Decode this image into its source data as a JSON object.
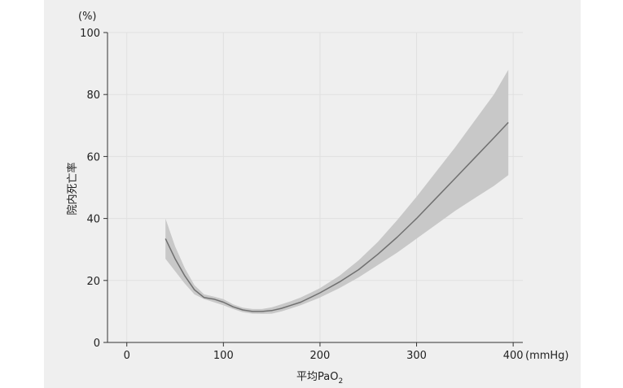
{
  "chart_data": {
    "type": "line",
    "title": "",
    "xlabel": "平均PaO",
    "xlabel_subscript": "2",
    "ylabel": "院内死亡率",
    "x_unit": "(mmHg)",
    "y_unit": "(%)",
    "xlim": [
      -20,
      410
    ],
    "ylim": [
      0,
      100
    ],
    "x_ticks": [
      0,
      100,
      200,
      300,
      400
    ],
    "y_ticks": [
      0,
      20,
      40,
      60,
      80,
      100
    ],
    "grid": true,
    "series": [
      {
        "x": [
          40,
          50,
          60,
          70,
          80,
          90,
          100,
          110,
          120,
          130,
          140,
          150,
          160,
          170,
          180,
          200,
          220,
          240,
          260,
          280,
          300,
          320,
          340,
          360,
          380,
          395
        ],
        "y": [
          33.5,
          27,
          21.5,
          17,
          14.5,
          14,
          13,
          11.5,
          10.5,
          10,
          10,
          10.3,
          11,
          12,
          13,
          16,
          19.5,
          23.5,
          28.5,
          34,
          40,
          46.5,
          53,
          59.5,
          66,
          71
        ],
        "lower": [
          27,
          23,
          19,
          15.5,
          14,
          13,
          12,
          10.8,
          9.8,
          9.3,
          9.2,
          9.3,
          10,
          11,
          12,
          14.5,
          17.5,
          21,
          25,
          29,
          33.5,
          38,
          42.5,
          46.5,
          50.5,
          54
        ],
        "upper": [
          40,
          31,
          24,
          18.5,
          15.5,
          14.8,
          14,
          12.3,
          11.2,
          10.8,
          10.8,
          11.3,
          12.3,
          13.3,
          14.5,
          17.5,
          21.5,
          26.5,
          32.5,
          39.5,
          47,
          55,
          63,
          71.5,
          80,
          88
        ]
      }
    ],
    "colors": {
      "line": "#707070",
      "band": "#c8c8c8",
      "panel": "#efefef",
      "grid": "#e0e0e0"
    }
  }
}
